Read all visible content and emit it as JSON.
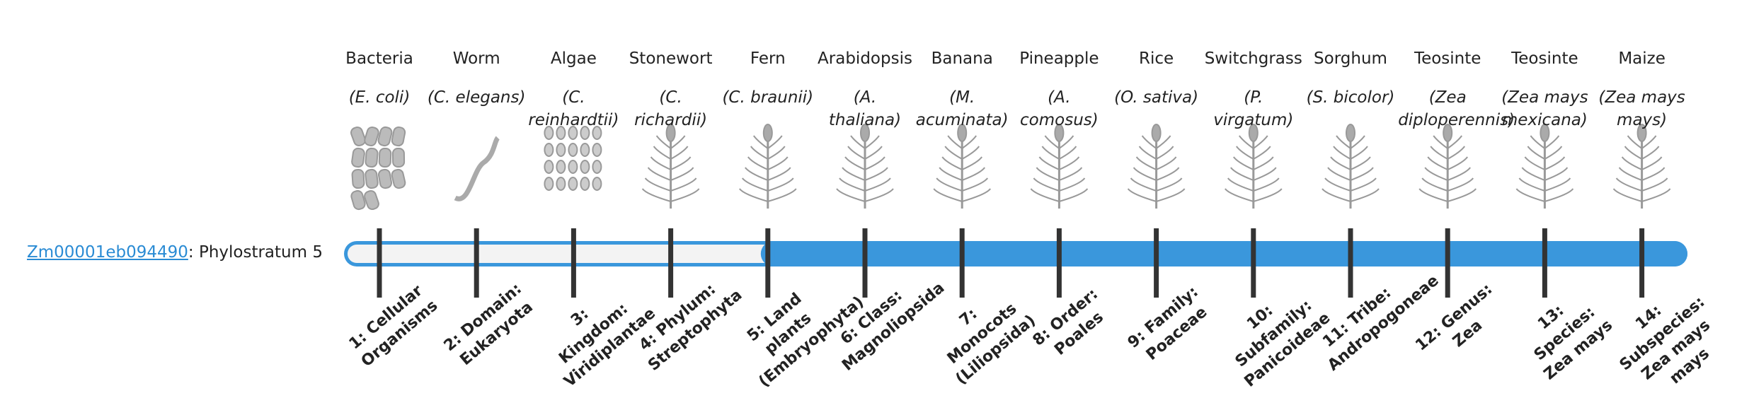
{
  "gene": {
    "id": "Zm00001eb094490",
    "label": ": Phylostratum 5"
  },
  "filled_from_stratum": 5,
  "strata": [
    {
      "organism": "Bacteria",
      "species": "(E. coli)",
      "rank": "1: Cellular Organisms"
    },
    {
      "organism": "Worm",
      "species": "(C. elegans)",
      "rank": "2: Domain: Eukaryota"
    },
    {
      "organism": "Algae",
      "species": "(C. reinhardtii)",
      "rank": "3: Kingdom: Viridiplantae"
    },
    {
      "organism": "Stonewort",
      "species": "(C. richardii)",
      "rank": "4: Phylum: Streptophyta"
    },
    {
      "organism": "Fern",
      "species": "(C. braunii)",
      "rank": "5: Land plants (Embryophyta)"
    },
    {
      "organism": "Arabidopsis",
      "species": "(A. thaliana)",
      "rank": "6: Class: Magnoliopsida"
    },
    {
      "organism": "Banana",
      "species": "(M. acuminata)",
      "rank": "7: Monocots (Liliopsida)"
    },
    {
      "organism": "Pineapple",
      "species": "(A. comosus)",
      "rank": "8: Order: Poales"
    },
    {
      "organism": "Rice",
      "species": "(O. sativa)",
      "rank": "9: Family: Poaceae"
    },
    {
      "organism": "Switchgrass",
      "species": "(P. virgatum)",
      "rank": "10: Subfamily: Panicoideae"
    },
    {
      "organism": "Sorghum",
      "species": "(S. bicolor)",
      "rank": "11: Tribe: Andropogoneae"
    },
    {
      "organism": "Teosinte",
      "species": "(Zea diploperennis)",
      "rank": "12: Genus: Zea"
    },
    {
      "organism": "Teosinte",
      "species": "(Zea mays mexicana)",
      "rank": "13: Species: Zea mays"
    },
    {
      "organism": "Maize",
      "species": "(Zea mays mays)",
      "rank": "14: Subspecies: Zea mays mays"
    }
  ]
}
